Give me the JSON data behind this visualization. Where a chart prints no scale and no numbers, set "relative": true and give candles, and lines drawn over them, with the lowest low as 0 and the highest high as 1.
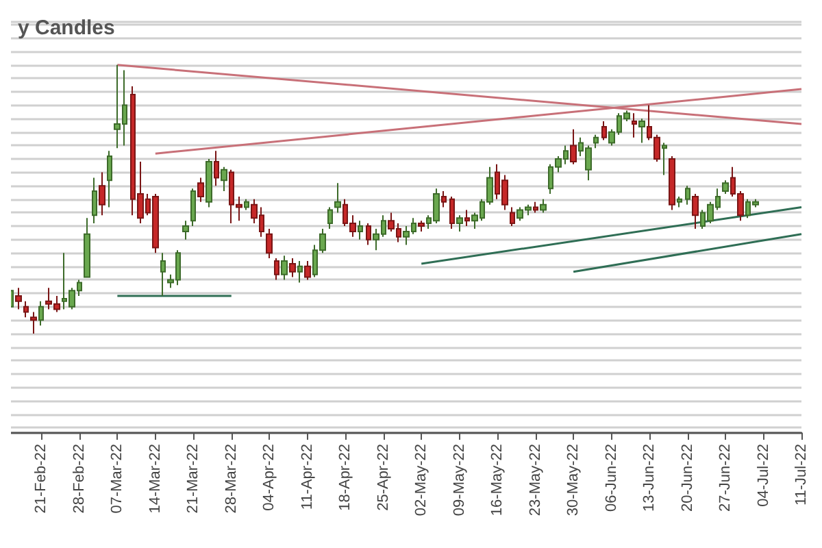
{
  "chart_data": {
    "type": "candlestick",
    "title": "y Candles",
    "relative": true,
    "grid": "y",
    "categories": [
      null,
      null,
      null,
      null,
      "21-Feb-22",
      null,
      null,
      null,
      null,
      "28-Feb-22",
      null,
      null,
      null,
      null,
      "07-Mar-22",
      null,
      null,
      null,
      null,
      "14-Mar-22",
      null,
      null,
      null,
      null,
      "21-Mar-22",
      null,
      null,
      null,
      null,
      "28-Mar-22",
      null,
      null,
      null,
      null,
      "04-Apr-22",
      null,
      null,
      null,
      null,
      "11-Apr-22",
      null,
      null,
      null,
      null,
      "18-Apr-22",
      null,
      null,
      null,
      null,
      "25-Apr-22",
      null,
      null,
      null,
      null,
      "02-May-22",
      null,
      null,
      null,
      null,
      "09-May-22",
      null,
      null,
      null,
      null,
      "16-May-22",
      null,
      null,
      null,
      null,
      "23-May-22",
      null,
      null,
      null,
      null,
      "30-May-22",
      null,
      null,
      null,
      null,
      "06-Jun-22",
      null,
      null,
      null,
      null,
      "13-Jun-22",
      null,
      null,
      null,
      null,
      "20-Jun-22",
      null,
      null,
      null,
      null,
      "27-Jun-22",
      null,
      null,
      null,
      null,
      "04-Jul-22",
      null,
      null,
      null,
      null,
      "11-Jul-22"
    ],
    "ohlc": [
      [
        0.1,
        0.18,
        0.08,
        0.16
      ],
      [
        0.14,
        0.17,
        0.09,
        0.12
      ],
      [
        0.1,
        0.12,
        0.06,
        0.08
      ],
      [
        0.06,
        0.08,
        0.0,
        0.05
      ],
      [
        0.05,
        0.12,
        0.03,
        0.1
      ],
      [
        0.12,
        0.17,
        0.09,
        0.11
      ],
      [
        0.11,
        0.14,
        0.08,
        0.09
      ],
      [
        0.12,
        0.3,
        0.09,
        0.13
      ],
      [
        0.1,
        0.17,
        0.09,
        0.16
      ],
      [
        0.16,
        0.2,
        0.14,
        0.19
      ],
      [
        0.21,
        0.43,
        0.21,
        0.37
      ],
      [
        0.44,
        0.58,
        0.41,
        0.53
      ],
      [
        0.55,
        0.6,
        0.44,
        0.48
      ],
      [
        0.57,
        0.68,
        0.47,
        0.66
      ],
      [
        0.76,
        1.0,
        0.69,
        0.78
      ],
      [
        0.78,
        0.98,
        0.7,
        0.85
      ],
      [
        0.89,
        0.92,
        0.44,
        0.5
      ],
      [
        0.52,
        0.64,
        0.41,
        0.43
      ],
      [
        0.5,
        0.52,
        0.44,
        0.45
      ],
      [
        0.51,
        0.52,
        0.3,
        0.32
      ],
      [
        0.23,
        0.3,
        0.14,
        0.27
      ],
      [
        0.19,
        0.22,
        0.17,
        0.2
      ],
      [
        0.2,
        0.31,
        0.18,
        0.3
      ],
      [
        0.38,
        0.42,
        0.35,
        0.4
      ],
      [
        0.42,
        0.54,
        0.4,
        0.53
      ],
      [
        0.56,
        0.58,
        0.49,
        0.51
      ],
      [
        0.49,
        0.65,
        0.47,
        0.64
      ],
      [
        0.64,
        0.68,
        0.55,
        0.58
      ],
      [
        0.57,
        0.62,
        0.53,
        0.61
      ],
      [
        0.6,
        0.61,
        0.41,
        0.48
      ],
      [
        0.48,
        0.51,
        0.42,
        0.47
      ],
      [
        0.47,
        0.5,
        0.46,
        0.49
      ],
      [
        0.48,
        0.5,
        0.41,
        0.43
      ],
      [
        0.44,
        0.47,
        0.36,
        0.38
      ],
      [
        0.37,
        0.39,
        0.28,
        0.3
      ],
      [
        0.27,
        0.28,
        0.2,
        0.22
      ],
      [
        0.22,
        0.29,
        0.2,
        0.27
      ],
      [
        0.26,
        0.28,
        0.21,
        0.23
      ],
      [
        0.23,
        0.27,
        0.19,
        0.25
      ],
      [
        0.25,
        0.27,
        0.2,
        0.21
      ],
      [
        0.22,
        0.33,
        0.21,
        0.31
      ],
      [
        0.31,
        0.39,
        0.3,
        0.37
      ],
      [
        0.41,
        0.47,
        0.39,
        0.46
      ],
      [
        0.47,
        0.56,
        0.45,
        0.49
      ],
      [
        0.48,
        0.5,
        0.4,
        0.41
      ],
      [
        0.41,
        0.44,
        0.36,
        0.38
      ],
      [
        0.38,
        0.42,
        0.35,
        0.4
      ],
      [
        0.4,
        0.41,
        0.33,
        0.35
      ],
      [
        0.35,
        0.39,
        0.31,
        0.37
      ],
      [
        0.37,
        0.44,
        0.36,
        0.42
      ],
      [
        0.42,
        0.45,
        0.38,
        0.39
      ],
      [
        0.39,
        0.41,
        0.34,
        0.36
      ],
      [
        0.36,
        0.4,
        0.33,
        0.38
      ],
      [
        0.38,
        0.43,
        0.37,
        0.41
      ],
      [
        0.41,
        0.42,
        0.38,
        0.4
      ],
      [
        0.41,
        0.44,
        0.39,
        0.43
      ],
      [
        0.42,
        0.54,
        0.41,
        0.52
      ],
      [
        0.51,
        0.53,
        0.47,
        0.49
      ],
      [
        0.5,
        0.51,
        0.39,
        0.41
      ],
      [
        0.41,
        0.44,
        0.38,
        0.43
      ],
      [
        0.43,
        0.46,
        0.4,
        0.42
      ],
      [
        0.42,
        0.45,
        0.39,
        0.44
      ],
      [
        0.43,
        0.5,
        0.42,
        0.49
      ],
      [
        0.49,
        0.62,
        0.48,
        0.58
      ],
      [
        0.6,
        0.63,
        0.5,
        0.52
      ],
      [
        0.57,
        0.59,
        0.46,
        0.48
      ],
      [
        0.45,
        0.47,
        0.4,
        0.41
      ],
      [
        0.43,
        0.47,
        0.42,
        0.46
      ],
      [
        0.46,
        0.48,
        0.44,
        0.47
      ],
      [
        0.47,
        0.49,
        0.45,
        0.46
      ],
      [
        0.46,
        0.5,
        0.45,
        0.48
      ],
      [
        0.54,
        0.63,
        0.52,
        0.62
      ],
      [
        0.62,
        0.66,
        0.6,
        0.65
      ],
      [
        0.65,
        0.7,
        0.63,
        0.68
      ],
      [
        0.7,
        0.76,
        0.63,
        0.64
      ],
      [
        0.68,
        0.73,
        0.66,
        0.71
      ],
      [
        0.61,
        0.7,
        0.57,
        0.69
      ],
      [
        0.71,
        0.74,
        0.69,
        0.73
      ],
      [
        0.77,
        0.79,
        0.72,
        0.73
      ],
      [
        0.71,
        0.76,
        0.7,
        0.75
      ],
      [
        0.75,
        0.82,
        0.74,
        0.81
      ],
      [
        0.8,
        0.83,
        0.79,
        0.82
      ],
      [
        0.79,
        0.82,
        0.73,
        0.78
      ],
      [
        0.77,
        0.8,
        0.71,
        0.79
      ],
      [
        0.77,
        0.85,
        0.72,
        0.73
      ],
      [
        0.73,
        0.74,
        0.64,
        0.65
      ],
      [
        0.69,
        0.71,
        0.59,
        0.7
      ],
      [
        0.65,
        0.66,
        0.46,
        0.48
      ],
      [
        0.49,
        0.51,
        0.47,
        0.5
      ],
      [
        0.5,
        0.55,
        0.48,
        0.54
      ],
      [
        0.51,
        0.52,
        0.39,
        0.44
      ],
      [
        0.4,
        0.46,
        0.39,
        0.45
      ],
      [
        0.42,
        0.49,
        0.41,
        0.48
      ],
      [
        0.47,
        0.54,
        0.46,
        0.51
      ],
      [
        0.53,
        0.57,
        0.52,
        0.56
      ],
      [
        0.58,
        0.62,
        0.51,
        0.52
      ],
      [
        0.52,
        0.53,
        0.42,
        0.44
      ],
      [
        0.44,
        0.5,
        0.43,
        0.49
      ],
      [
        0.48,
        0.5,
        0.47,
        0.49
      ],
      null,
      null,
      null,
      null,
      null,
      null
    ],
    "series": [
      {
        "type": "line",
        "color": "#c87078",
        "x": [
          "07-Mar-22",
          "11-Jul-22"
        ],
        "values": [
          1.0,
          0.78
        ]
      },
      {
        "type": "line",
        "color": "#c87078",
        "x": [
          "14-Mar-22",
          "11-Jul-22"
        ],
        "values": [
          0.67,
          0.91
        ]
      },
      {
        "type": "line",
        "color": "#2f6e55",
        "x": [
          "02-May-22",
          "11-Jul-22"
        ],
        "values": [
          0.26,
          0.47
        ]
      },
      {
        "type": "line",
        "color": "#2f6e55",
        "x": [
          "30-May-22",
          "11-Jul-22"
        ],
        "values": [
          0.23,
          0.37
        ]
      },
      {
        "type": "line",
        "color": "#2f6e55",
        "x": [
          "07-Mar-22",
          "28-Mar-22"
        ],
        "values": [
          0.14,
          0.14
        ]
      }
    ]
  }
}
